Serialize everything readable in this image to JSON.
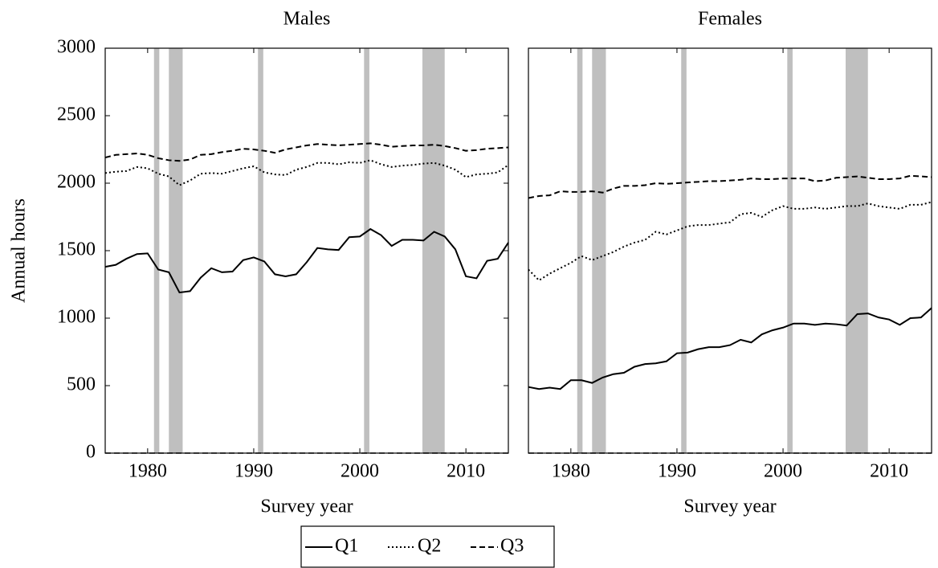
{
  "chart_data": [
    {
      "type": "line",
      "title": "Males",
      "xlabel": "Survey year",
      "ylabel": "Annual hours",
      "x": [
        1976,
        1977,
        1978,
        1979,
        1980,
        1981,
        1982,
        1983,
        1984,
        1985,
        1986,
        1987,
        1988,
        1989,
        1990,
        1991,
        1992,
        1993,
        1994,
        1995,
        1996,
        1997,
        1998,
        1999,
        2000,
        2001,
        2002,
        2003,
        2004,
        2005,
        2006,
        2007,
        2008,
        2009,
        2010,
        2011,
        2012,
        2013,
        2014
      ],
      "xlim": [
        1976,
        2014
      ],
      "xticks": [
        1980,
        1990,
        2000,
        2010
      ],
      "ylim": [
        0,
        3000
      ],
      "yticks": [
        0,
        500,
        1000,
        1500,
        2000,
        2500,
        3000
      ],
      "shaded_periods": [
        [
          1980.6,
          1981.1
        ],
        [
          1982.0,
          1983.3
        ],
        [
          1990.4,
          1990.9
        ],
        [
          2000.4,
          2000.9
        ],
        [
          2005.9,
          2008.0
        ]
      ],
      "shade_color": "#bfbfbf",
      "series": [
        {
          "name": "Q1",
          "color": "#000000",
          "dash": "solid",
          "values": [
            1380,
            1395,
            1440,
            1475,
            1480,
            1360,
            1340,
            1190,
            1200,
            1300,
            1370,
            1340,
            1345,
            1430,
            1450,
            1420,
            1325,
            1310,
            1325,
            1415,
            1520,
            1510,
            1505,
            1600,
            1605,
            1660,
            1615,
            1535,
            1580,
            1580,
            1575,
            1640,
            1605,
            1510,
            1310,
            1295,
            1425,
            1440,
            1560
          ]
        },
        {
          "name": "Q2",
          "color": "#000000",
          "dash": "dotted",
          "values": [
            2075,
            2085,
            2090,
            2120,
            2110,
            2070,
            2050,
            1985,
            2020,
            2070,
            2075,
            2070,
            2090,
            2110,
            2125,
            2080,
            2065,
            2060,
            2100,
            2120,
            2150,
            2150,
            2140,
            2155,
            2150,
            2170,
            2140,
            2120,
            2130,
            2135,
            2145,
            2150,
            2130,
            2100,
            2045,
            2065,
            2070,
            2080,
            2135
          ]
        },
        {
          "name": "Q3",
          "color": "#000000",
          "dash": "dashed",
          "values": [
            2190,
            2210,
            2215,
            2220,
            2210,
            2185,
            2170,
            2165,
            2175,
            2210,
            2215,
            2230,
            2240,
            2255,
            2250,
            2240,
            2225,
            2250,
            2265,
            2280,
            2290,
            2285,
            2280,
            2285,
            2290,
            2295,
            2285,
            2270,
            2275,
            2280,
            2280,
            2285,
            2275,
            2260,
            2240,
            2245,
            2255,
            2260,
            2265
          ]
        }
      ]
    },
    {
      "type": "line",
      "title": "Females",
      "xlabel": "Survey year",
      "x": [
        1976,
        1977,
        1978,
        1979,
        1980,
        1981,
        1982,
        1983,
        1984,
        1985,
        1986,
        1987,
        1988,
        1989,
        1990,
        1991,
        1992,
        1993,
        1994,
        1995,
        1996,
        1997,
        1998,
        1999,
        2000,
        2001,
        2002,
        2003,
        2004,
        2005,
        2006,
        2007,
        2008,
        2009,
        2010,
        2011,
        2012,
        2013,
        2014
      ],
      "xlim": [
        1976,
        2014
      ],
      "xticks": [
        1980,
        1990,
        2000,
        2010
      ],
      "ylim": [
        0,
        3000
      ],
      "shaded_periods": [
        [
          1980.6,
          1981.1
        ],
        [
          1982.0,
          1983.3
        ],
        [
          1990.4,
          1990.9
        ],
        [
          2000.4,
          2000.9
        ],
        [
          2005.9,
          2008.0
        ]
      ],
      "shade_color": "#bfbfbf",
      "series": [
        {
          "color": "#000000",
          "dash": "solid",
          "values": [
            490,
            475,
            485,
            475,
            540,
            540,
            520,
            560,
            585,
            595,
            640,
            660,
            665,
            680,
            740,
            745,
            770,
            785,
            785,
            800,
            840,
            820,
            880,
            910,
            930,
            960,
            960,
            950,
            960,
            955,
            945,
            1030,
            1035,
            1005,
            990,
            950,
            1000,
            1005,
            1075
          ]
        },
        {
          "color": "#000000",
          "dash": "dotted",
          "values": [
            1360,
            1280,
            1330,
            1370,
            1410,
            1460,
            1430,
            1460,
            1490,
            1530,
            1560,
            1580,
            1640,
            1620,
            1650,
            1680,
            1690,
            1690,
            1700,
            1710,
            1770,
            1780,
            1750,
            1800,
            1830,
            1810,
            1810,
            1820,
            1810,
            1820,
            1830,
            1830,
            1850,
            1830,
            1820,
            1810,
            1840,
            1840,
            1860
          ]
        },
        {
          "color": "#000000",
          "dash": "dashed",
          "values": [
            1890,
            1905,
            1910,
            1940,
            1935,
            1935,
            1940,
            1930,
            1960,
            1980,
            1980,
            1985,
            2000,
            1995,
            2000,
            2005,
            2010,
            2015,
            2015,
            2020,
            2025,
            2035,
            2030,
            2030,
            2035,
            2035,
            2035,
            2015,
            2020,
            2040,
            2045,
            2050,
            2040,
            2030,
            2030,
            2035,
            2055,
            2050,
            2045
          ]
        }
      ]
    }
  ]
}
